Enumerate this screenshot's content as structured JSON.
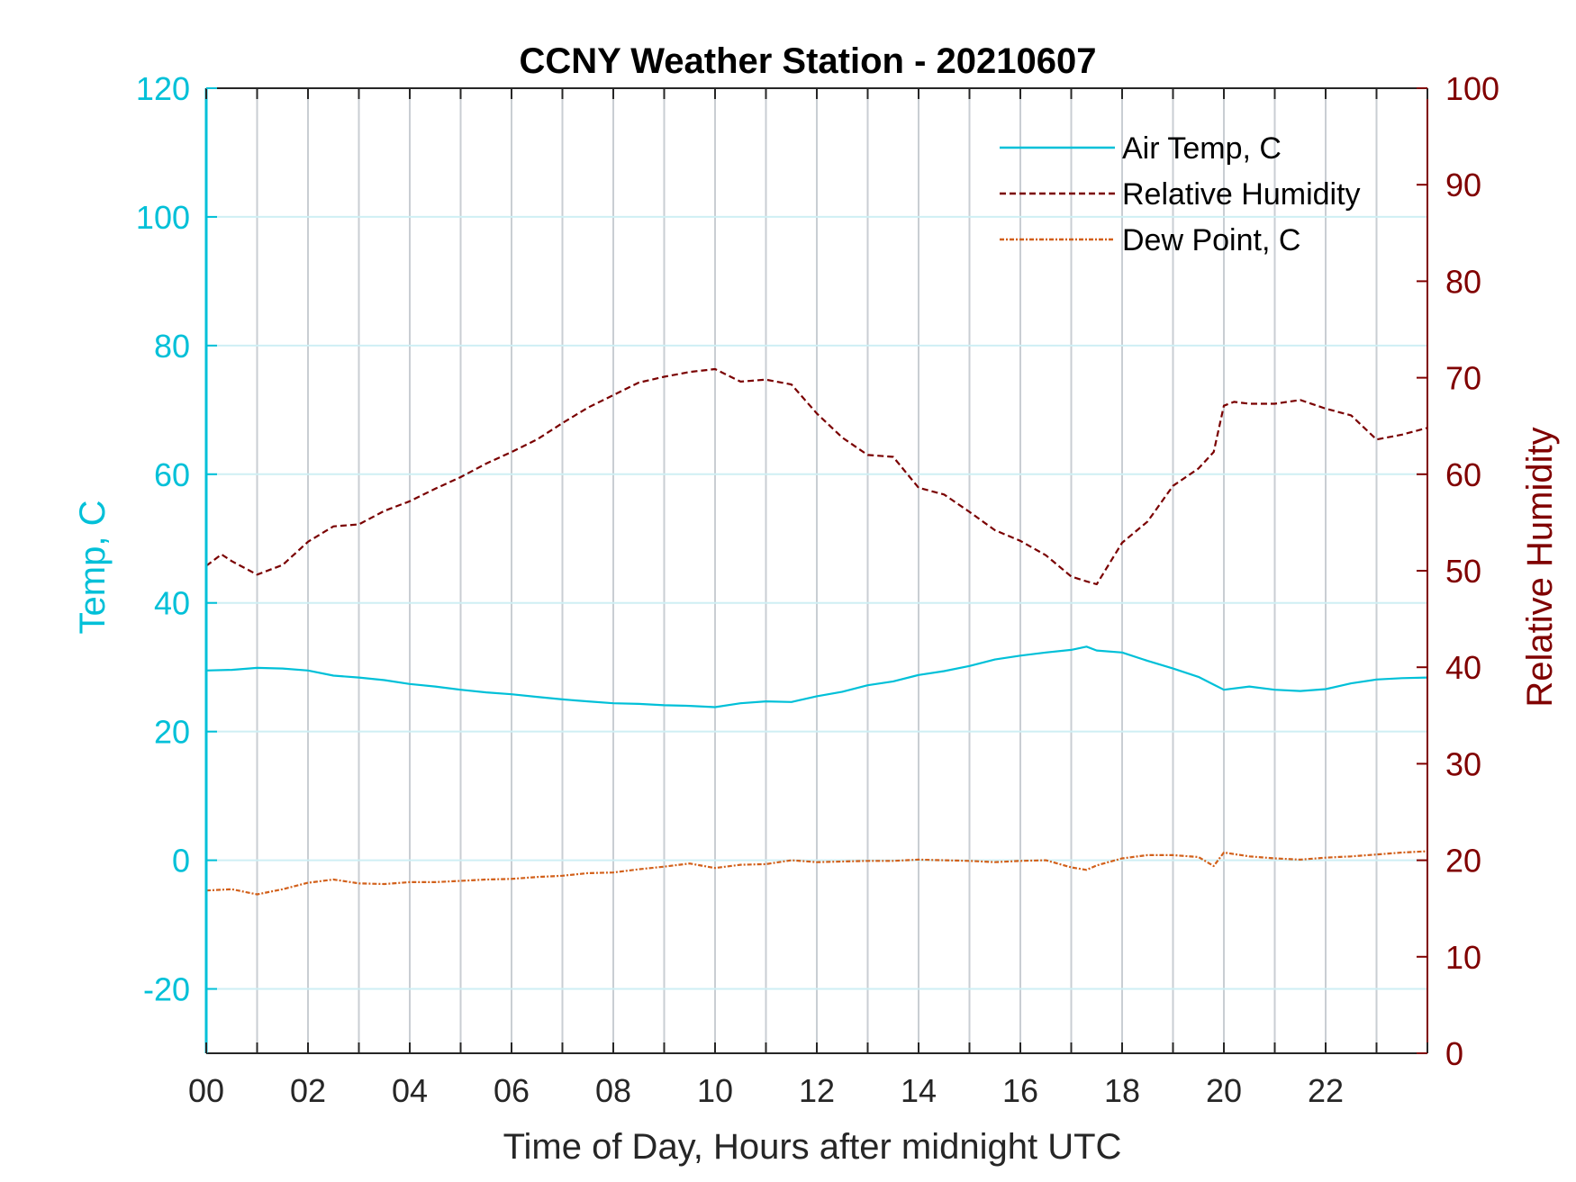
{
  "colors": {
    "temp_axis": "#00c0d8",
    "rh_axis": "#800000",
    "air_temp": "#00c0d8",
    "rh": "#7a0000",
    "dew_point": "#d2601a",
    "grid_vertical": "#c9ced3",
    "grid_horizontal": "#cfeff4"
  },
  "chart_data": {
    "type": "line",
    "title": "CCNY Weather Station - 20210607",
    "xlabel": "Time of Day, Hours after midnight UTC",
    "ylabel_left": "Temp, C",
    "ylabel_right": "Relative Humidity",
    "xlim": [
      0,
      24
    ],
    "ylim_left": [
      -30,
      120
    ],
    "ylim_right": [
      0,
      100
    ],
    "x_ticks": [
      0,
      2,
      4,
      6,
      8,
      10,
      12,
      14,
      16,
      18,
      20,
      22
    ],
    "x_tick_labels": [
      "00",
      "02",
      "04",
      "06",
      "08",
      "10",
      "12",
      "14",
      "16",
      "18",
      "20",
      "22"
    ],
    "y_left_ticks": [
      -20,
      0,
      20,
      40,
      60,
      80,
      100,
      120
    ],
    "y_left_tick_labels": [
      "-20",
      "0",
      "20",
      "40",
      "60",
      "80",
      "100",
      "120"
    ],
    "y_right_ticks": [
      0,
      10,
      20,
      30,
      40,
      50,
      60,
      70,
      80,
      90,
      100
    ],
    "y_right_tick_labels": [
      "0",
      "10",
      "20",
      "30",
      "40",
      "50",
      "60",
      "70",
      "80",
      "90",
      "100"
    ],
    "vertical_grid_hours": 1,
    "legend_position": "top-right",
    "series": [
      {
        "name": "Air Temp, C",
        "axis": "left",
        "style": "solid",
        "x": [
          0,
          0.5,
          1,
          1.5,
          2,
          2.5,
          3,
          3.5,
          4,
          4.5,
          5,
          5.5,
          6,
          6.5,
          7,
          7.5,
          8,
          8.5,
          9,
          9.5,
          10,
          10.5,
          11,
          11.5,
          12,
          12.5,
          13,
          13.5,
          14,
          14.5,
          15,
          15.5,
          16,
          16.5,
          17,
          17.3,
          17.5,
          18,
          18.5,
          19,
          19.5,
          19.8,
          20,
          20.5,
          21,
          21.5,
          22,
          22.5,
          23,
          23.5,
          24
        ],
        "values": [
          29.5,
          29.6,
          29.9,
          29.8,
          29.5,
          28.7,
          28.4,
          28.0,
          27.4,
          27.0,
          26.5,
          26.1,
          25.8,
          25.4,
          25.0,
          24.7,
          24.4,
          24.3,
          24.1,
          24.0,
          23.8,
          24.4,
          24.7,
          24.6,
          25.5,
          26.2,
          27.2,
          27.8,
          28.8,
          29.4,
          30.2,
          31.2,
          31.8,
          32.3,
          32.7,
          33.2,
          32.6,
          32.3,
          31.0,
          29.8,
          28.5,
          27.3,
          26.5,
          27.0,
          26.5,
          26.3,
          26.6,
          27.5,
          28.1,
          28.3,
          28.4
        ]
      },
      {
        "name": "Relative Humidity",
        "axis": "right",
        "style": "dashed",
        "x": [
          0,
          0.3,
          0.5,
          1,
          1.5,
          2,
          2.5,
          3,
          3.5,
          4,
          4.5,
          5,
          5.5,
          6,
          6.5,
          7,
          7.5,
          8,
          8.5,
          9,
          9.5,
          10,
          10.5,
          11,
          11.5,
          12,
          12.5,
          13,
          13.5,
          14,
          14.5,
          15,
          15.5,
          16,
          16.5,
          17,
          17.3,
          17.5,
          18,
          18.5,
          19,
          19.5,
          19.8,
          20,
          20.2,
          20.5,
          21,
          21.5,
          22,
          22.5,
          23,
          23.5,
          24
        ],
        "values": [
          50.5,
          51.7,
          51.0,
          49.6,
          50.6,
          53.0,
          54.6,
          54.8,
          56.2,
          57.2,
          58.5,
          59.7,
          61.1,
          62.3,
          63.6,
          65.3,
          66.9,
          68.2,
          69.5,
          70.1,
          70.6,
          70.9,
          69.6,
          69.8,
          69.3,
          66.3,
          63.8,
          62.0,
          61.8,
          58.6,
          57.9,
          56.1,
          54.2,
          53.1,
          51.6,
          49.4,
          48.9,
          48.6,
          52.9,
          55.1,
          58.8,
          60.6,
          62.3,
          67.1,
          67.5,
          67.3,
          67.3,
          67.7,
          66.8,
          66.1,
          63.6,
          64.1,
          64.8
        ]
      },
      {
        "name": "Dew Point, C",
        "axis": "left",
        "style": "dashdot",
        "x": [
          0,
          0.5,
          1,
          1.5,
          2,
          2.5,
          3,
          3.5,
          4,
          4.5,
          5,
          5.5,
          6,
          6.5,
          7,
          7.5,
          8,
          8.5,
          9,
          9.5,
          10,
          10.5,
          11,
          11.5,
          12,
          12.5,
          13,
          13.5,
          14,
          14.5,
          15,
          15.5,
          16,
          16.5,
          17,
          17.3,
          17.5,
          18,
          18.5,
          19,
          19.5,
          19.8,
          20,
          20.5,
          21,
          21.5,
          22,
          22.5,
          23,
          23.5,
          24
        ],
        "values": [
          -4.7,
          -4.5,
          -5.3,
          -4.5,
          -3.5,
          -3.0,
          -3.6,
          -3.7,
          -3.4,
          -3.4,
          -3.2,
          -3.0,
          -2.9,
          -2.6,
          -2.4,
          -2.0,
          -1.9,
          -1.4,
          -1.0,
          -0.5,
          -1.2,
          -0.7,
          -0.6,
          0.0,
          -0.3,
          -0.2,
          -0.1,
          -0.1,
          0.1,
          0.0,
          -0.1,
          -0.3,
          -0.1,
          0.0,
          -1.1,
          -1.5,
          -0.8,
          0.3,
          0.8,
          0.8,
          0.5,
          -0.9,
          1.2,
          0.6,
          0.3,
          0.1,
          0.4,
          0.6,
          0.9,
          1.2,
          1.4
        ]
      }
    ]
  }
}
